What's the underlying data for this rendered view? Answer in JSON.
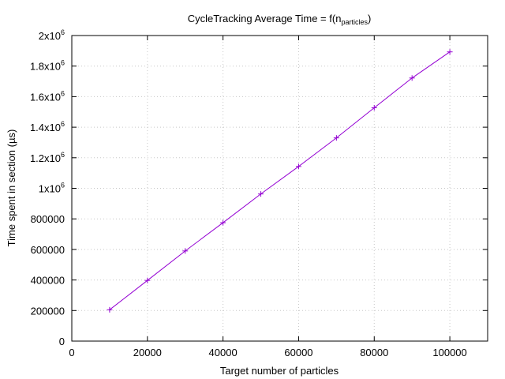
{
  "chart_data": {
    "type": "line",
    "title_main": "CycleTracking Average Time = f(n",
    "title_sub": "particles",
    "title_end": ")",
    "xlabel": "Target number of particles",
    "ylabel": "Time spent in section (µs)",
    "xlim": [
      0,
      110000
    ],
    "ylim": [
      0,
      2000000
    ],
    "x_ticks": [
      {
        "value": 0,
        "label": "0"
      },
      {
        "value": 20000,
        "label": "20000"
      },
      {
        "value": 40000,
        "label": "40000"
      },
      {
        "value": 60000,
        "label": "60000"
      },
      {
        "value": 80000,
        "label": "80000"
      },
      {
        "value": 100000,
        "label": "100000"
      }
    ],
    "y_ticks": [
      {
        "value": 0,
        "label": "0",
        "exp": ""
      },
      {
        "value": 200000,
        "label": "200000",
        "exp": ""
      },
      {
        "value": 400000,
        "label": "400000",
        "exp": ""
      },
      {
        "value": 600000,
        "label": "600000",
        "exp": ""
      },
      {
        "value": 800000,
        "label": "800000",
        "exp": ""
      },
      {
        "value": 1000000,
        "label": "1x10",
        "exp": "6"
      },
      {
        "value": 1200000,
        "label": "1.2x10",
        "exp": "6"
      },
      {
        "value": 1400000,
        "label": "1.4x10",
        "exp": "6"
      },
      {
        "value": 1600000,
        "label": "1.6x10",
        "exp": "6"
      },
      {
        "value": 1800000,
        "label": "1.8x10",
        "exp": "6"
      },
      {
        "value": 2000000,
        "label": "2x10",
        "exp": "6"
      }
    ],
    "grid": true,
    "series": [
      {
        "color": "#9400d3",
        "marker": "plus",
        "x": [
          10000,
          20000,
          30000,
          40000,
          50000,
          60000,
          70000,
          80000,
          90000,
          100000
        ],
        "y": [
          205000,
          397000,
          590000,
          775000,
          963000,
          1143000,
          1330000,
          1527000,
          1722000,
          1893000
        ]
      }
    ]
  }
}
